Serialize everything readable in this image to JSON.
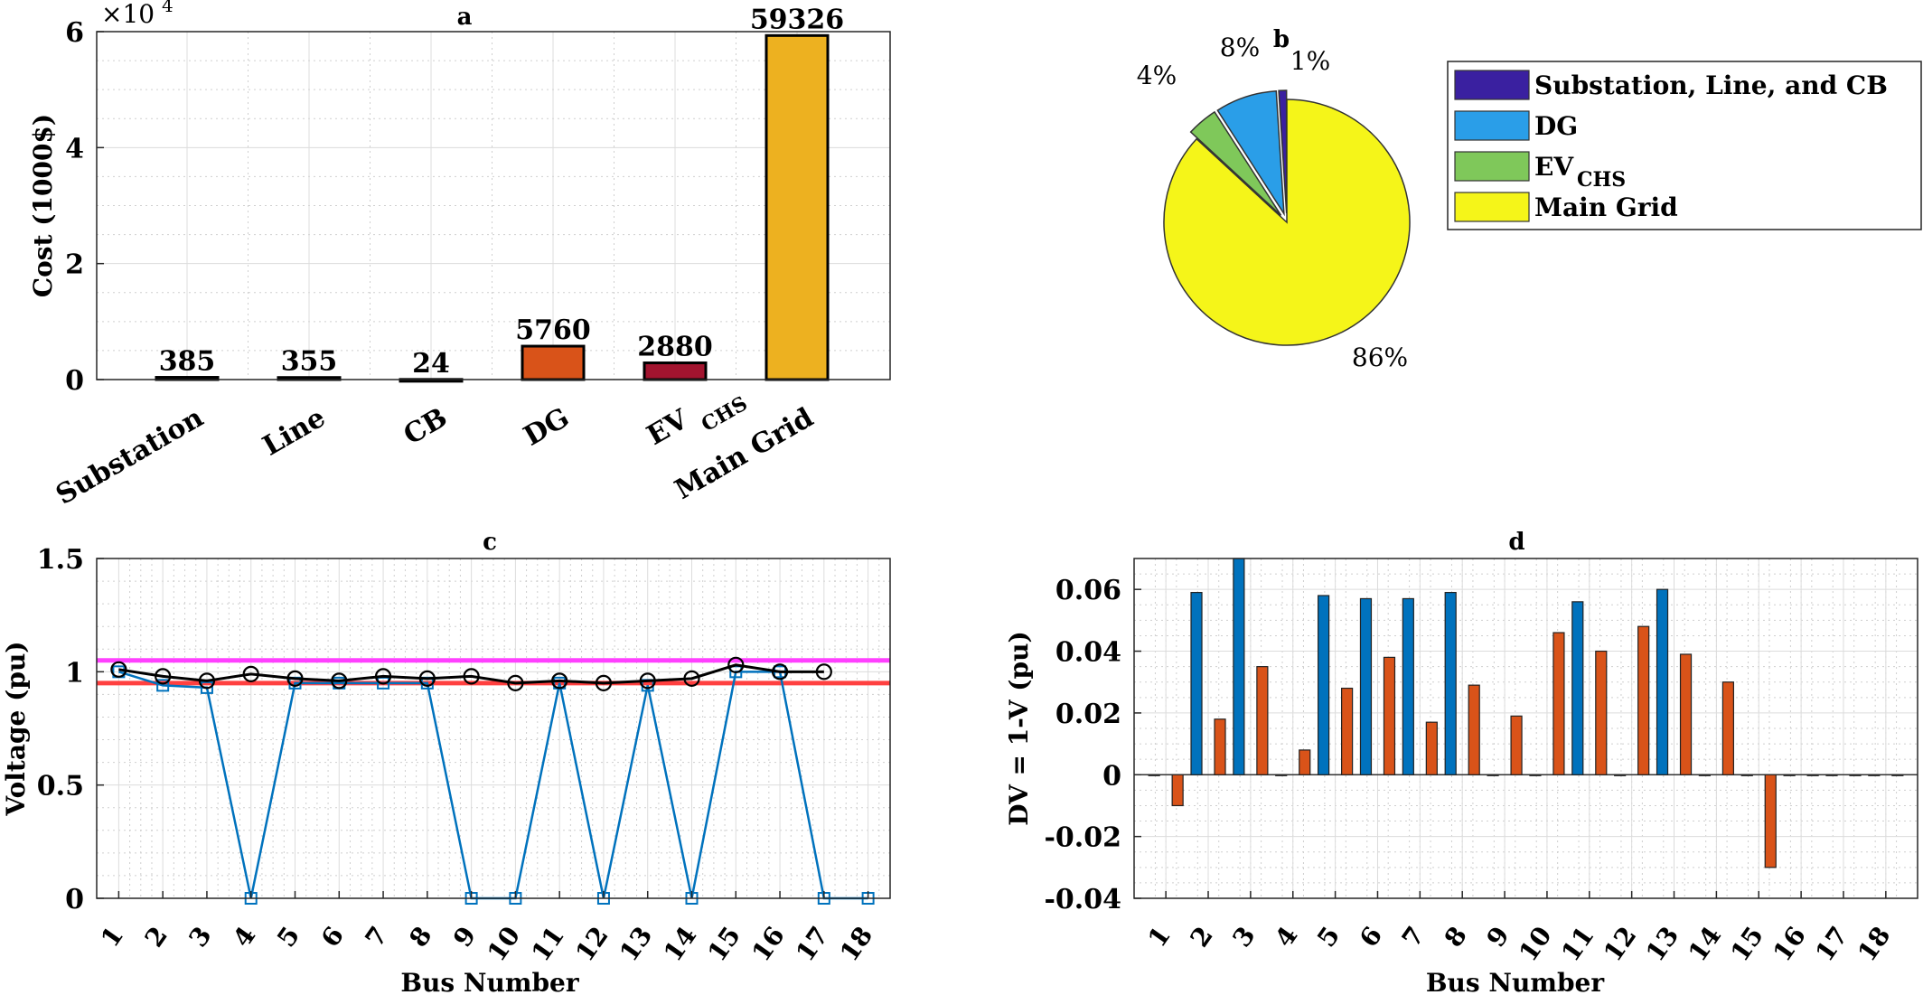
{
  "chart_data": [
    {
      "panel": "a",
      "type": "bar",
      "title": "a",
      "ylabel": "Cost (1000$)",
      "exponent_label": "×10",
      "exponent_power": "4",
      "categories": [
        "Substation",
        "Line",
        "CB",
        "DG",
        "EV",
        "Main Grid"
      ],
      "category_subscripts": [
        "",
        "",
        "",
        "",
        "CHS",
        ""
      ],
      "values": [
        385,
        355,
        24,
        5760,
        2880,
        59326
      ],
      "value_labels": [
        "385",
        "355",
        "24",
        "5760",
        "2880",
        "59326"
      ],
      "colors": [
        "#0072bd",
        "#0072bd",
        "#0072bd",
        "#d95319",
        "#a2142f",
        "#edb120"
      ],
      "ylim": [
        0,
        60000
      ],
      "yticks": [
        0,
        20000,
        40000,
        60000
      ],
      "ytick_labels": [
        "0",
        "2",
        "4",
        "6"
      ],
      "grid": true
    },
    {
      "panel": "b",
      "type": "pie",
      "title": "b",
      "labels": [
        "Substation, Line, and CB",
        "DG",
        "EV",
        "Main Grid"
      ],
      "label_subscripts": [
        "",
        "",
        "CHS",
        ""
      ],
      "values": [
        1,
        8,
        4,
        86
      ],
      "percent_labels": [
        "1%",
        "8%",
        "4%",
        "86%"
      ],
      "colors": [
        "#3a20a0",
        "#2a9ee8",
        "#7fc85a",
        "#f5f519"
      ],
      "exploded": [
        true,
        true,
        true,
        false
      ],
      "legend_position": "right"
    },
    {
      "panel": "c",
      "type": "line",
      "title": "c",
      "xlabel": "Bus Number",
      "ylabel": "Voltage (pu)",
      "x": [
        1,
        2,
        3,
        4,
        5,
        6,
        7,
        8,
        9,
        10,
        11,
        12,
        13,
        14,
        15,
        16,
        17,
        18
      ],
      "xlim": [
        0.5,
        18.5
      ],
      "ylim": [
        0,
        1.5
      ],
      "yticks": [
        0,
        0.5,
        1,
        1.5
      ],
      "ytick_labels": [
        "0",
        "0.5",
        "1",
        "1.5"
      ],
      "grid": true,
      "series": [
        {
          "marker": "square",
          "color": "#0072bd",
          "values": [
            1.0,
            0.94,
            0.93,
            0.0,
            0.95,
            0.95,
            0.95,
            0.95,
            0.0,
            0.0,
            0.95,
            0.0,
            0.94,
            0.0,
            1.0,
            1.0,
            0.0,
            0.0
          ]
        },
        {
          "marker": "circle",
          "color": "#000000",
          "values": [
            1.01,
            0.98,
            0.96,
            0.99,
            0.97,
            0.96,
            0.98,
            0.97,
            0.98,
            0.95,
            0.96,
            0.95,
            0.96,
            0.97,
            1.03,
            1.0,
            1.0,
            null
          ]
        }
      ],
      "limit_lines": [
        {
          "value": 1.05,
          "color": "#ff40ff"
        },
        {
          "value": 0.95,
          "color": "#ff4040"
        }
      ]
    },
    {
      "panel": "d",
      "type": "bar",
      "title": "d",
      "xlabel": "Bus Number",
      "ylabel": "DV = 1-V (pu)",
      "categories": [
        "1",
        "2",
        "3",
        "4",
        "5",
        "6",
        "7",
        "8",
        "9",
        "10",
        "11",
        "12",
        "13",
        "14",
        "15",
        "16",
        "17",
        "18"
      ],
      "ylim": [
        -0.04,
        0.07
      ],
      "yticks": [
        -0.04,
        -0.02,
        0,
        0.02,
        0.04,
        0.06
      ],
      "ytick_labels": [
        "-0.04",
        "-0.02",
        "0",
        "0.02",
        "0.04",
        "0.06"
      ],
      "grid": true,
      "series": [
        {
          "color": "#0072bd",
          "values": [
            0,
            0.059,
            0.07,
            0,
            0.058,
            0.057,
            0.057,
            0.059,
            0,
            0,
            0.056,
            0,
            0.06,
            0,
            0,
            0,
            0,
            0
          ]
        },
        {
          "color": "#d95319",
          "values": [
            -0.01,
            0.018,
            0.035,
            0.008,
            0.028,
            0.038,
            0.017,
            0.029,
            0.019,
            0.046,
            0.04,
            0.048,
            0.039,
            0.03,
            -0.03,
            0,
            0,
            0
          ]
        }
      ]
    }
  ]
}
